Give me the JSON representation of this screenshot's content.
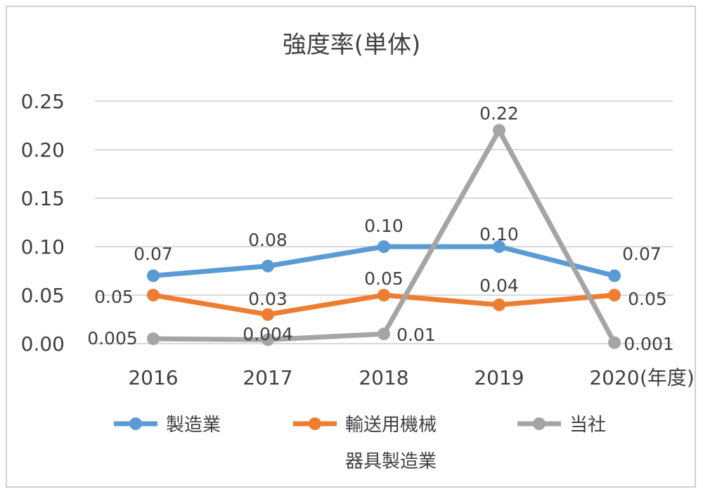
{
  "chart_data": {
    "type": "line",
    "title": "強度率(単体)",
    "x": [
      "2016",
      "2017",
      "2018",
      "2019",
      "2020"
    ],
    "xunit": "(年度)",
    "ylim": [
      0,
      0.25
    ],
    "yticks": [
      "0.00",
      "0.05",
      "0.10",
      "0.15",
      "0.20",
      "0.25"
    ],
    "grid": true,
    "legend_position": "bottom",
    "series": [
      {
        "name": "製造業",
        "color": "#5b9bd5",
        "values": [
          0.07,
          0.08,
          0.1,
          0.1,
          0.07
        ],
        "labels": [
          "0.07",
          "0.08",
          "0.10",
          "0.10",
          "0.07"
        ]
      },
      {
        "name": "輸送用機械器具製造業",
        "legend_lines": [
          "輸送用機械",
          "器具製造業"
        ],
        "color": "#ed7d31",
        "values": [
          0.05,
          0.03,
          0.05,
          0.04,
          0.05
        ],
        "labels": [
          "0.05",
          "0.03",
          "0.05",
          "0.04",
          "0.05"
        ]
      },
      {
        "name": "当社",
        "color": "#a5a5a5",
        "values": [
          0.005,
          0.004,
          0.01,
          0.22,
          0.001
        ],
        "labels": [
          "0.005",
          "0.004",
          "0.01",
          "0.22",
          "0.001"
        ]
      }
    ]
  }
}
